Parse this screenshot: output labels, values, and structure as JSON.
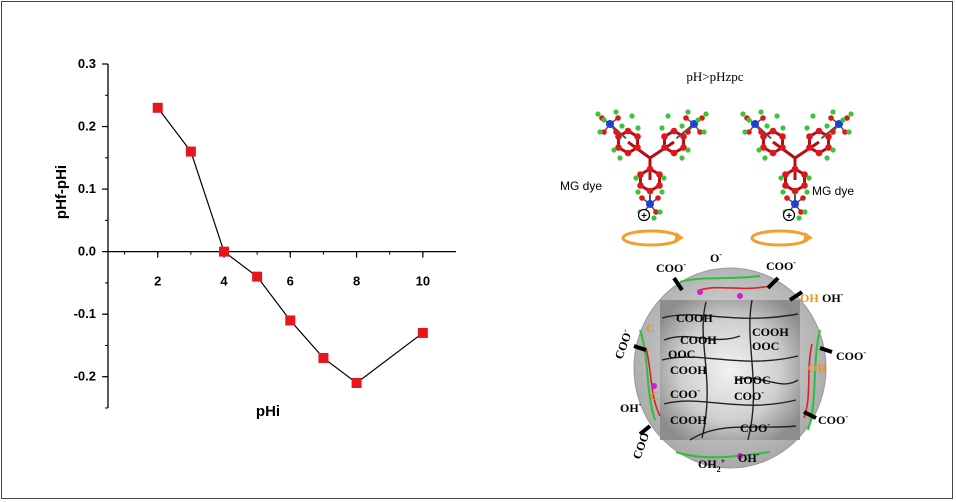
{
  "chart_data": {
    "type": "line",
    "xlabel": "pHi",
    "ylabel": "pHf-pHi",
    "xlim": [
      0.5,
      11
    ],
    "ylim": [
      -0.25,
      0.3
    ],
    "xticks": [
      2,
      4,
      6,
      8,
      10
    ],
    "yticks": [
      0.3,
      0.2,
      0.1,
      0.0,
      -0.1,
      -0.2
    ],
    "ytick_labels": [
      "0.3",
      "0.2",
      "0.1",
      "0.0",
      "-0.1",
      "-0.2"
    ],
    "series": [
      {
        "x": [
          2,
          3,
          4,
          5,
          6,
          7,
          8,
          10
        ],
        "y": [
          0.23,
          0.16,
          0.0,
          -0.04,
          -0.11,
          -0.17,
          -0.21,
          -0.13
        ]
      }
    ],
    "marker_color": "#e8161b",
    "line_color": "#000000",
    "grid": false
  },
  "scheme": {
    "title": "pH>pHzpc",
    "dye_label_left": "MG dye",
    "dye_label_right": "MG dye",
    "charge_symbol": "+",
    "groups": {
      "coo_minus": "COO",
      "o_minus": "O",
      "oh_minus": "OH",
      "cooh": "COOH",
      "ooc_minus": "OOC",
      "hooc": "HOOC",
      "oh2_plus": "OH",
      "oh_orange": "OH",
      "co_orange": "C"
    },
    "colors": {
      "atom_red": "#e0161b",
      "atom_green": "#3bc43b",
      "atom_blue": "#2040d0",
      "arrow_orange": "#f0a030",
      "sphere_gray": "#bdbdbd",
      "fiber_green": "#2fbf3f",
      "fiber_red": "#d8232a",
      "node_magenta": "#d01ec8"
    }
  }
}
